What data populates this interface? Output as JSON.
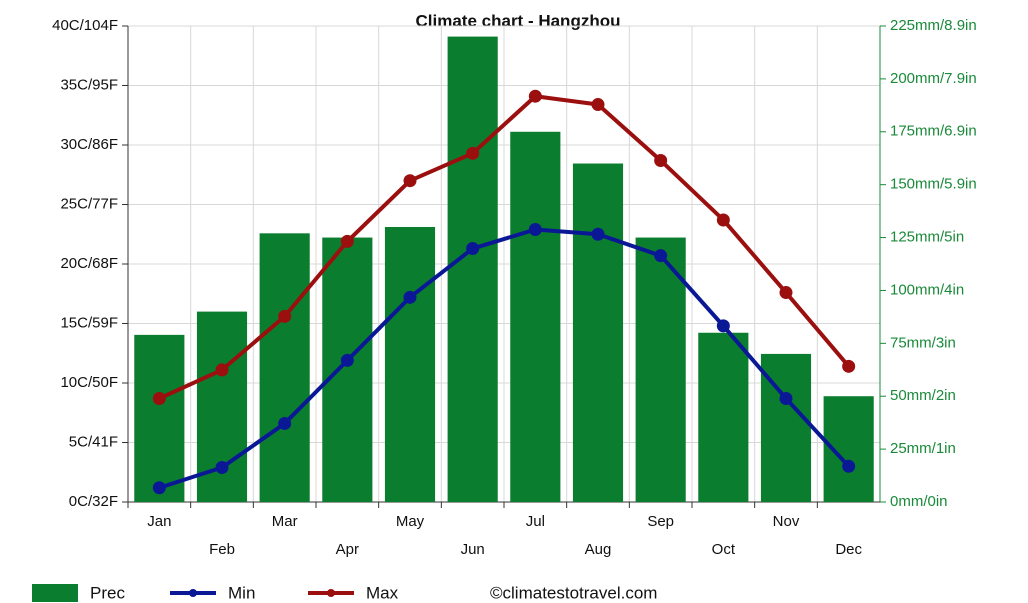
{
  "chart_data": {
    "type": "bar",
    "title": "Climate chart - Hangzhou",
    "source": "©climatestotravel.com",
    "categories": [
      "Jan",
      "Feb",
      "Mar",
      "Apr",
      "May",
      "Jun",
      "Jul",
      "Aug",
      "Sep",
      "Oct",
      "Nov",
      "Dec"
    ],
    "series": [
      {
        "name": "Prec",
        "type": "bar",
        "axis": "y2",
        "color": "#0b7d2e",
        "values": [
          79,
          90,
          127,
          125,
          130,
          220,
          175,
          160,
          125,
          80,
          70,
          50
        ]
      },
      {
        "name": "Min",
        "type": "line",
        "color": "#0a1896",
        "values": [
          1.2,
          2.9,
          6.6,
          11.9,
          17.2,
          21.3,
          22.9,
          22.5,
          20.7,
          14.8,
          8.7,
          3.0
        ]
      },
      {
        "name": "Max",
        "type": "line",
        "color": "#9b0f0f",
        "values": [
          8.7,
          11.1,
          15.6,
          21.9,
          27.0,
          29.3,
          34.1,
          33.4,
          28.7,
          23.7,
          17.6,
          11.4
        ]
      }
    ],
    "ylim": [
      0,
      40
    ],
    "yticks": [
      {
        "value": 0,
        "label": "0C/32F"
      },
      {
        "value": 5,
        "label": "5C/41F"
      },
      {
        "value": 10,
        "label": "10C/50F"
      },
      {
        "value": 15,
        "label": "15C/59F"
      },
      {
        "value": 20,
        "label": "20C/68F"
      },
      {
        "value": 25,
        "label": "25C/77F"
      },
      {
        "value": 30,
        "label": "30C/86F"
      },
      {
        "value": 35,
        "label": "35C/95F"
      },
      {
        "value": 40,
        "label": "40C/104F"
      }
    ],
    "y2lim": [
      0,
      225
    ],
    "y2ticks": [
      {
        "value": 0,
        "label": "0mm/0in"
      },
      {
        "value": 25,
        "label": "25mm/1in"
      },
      {
        "value": 50,
        "label": "50mm/2in"
      },
      {
        "value": 75,
        "label": "75mm/3in"
      },
      {
        "value": 100,
        "label": "100mm/4in"
      },
      {
        "value": 125,
        "label": "125mm/5in"
      },
      {
        "value": 150,
        "label": "150mm/5.9in"
      },
      {
        "value": 175,
        "label": "175mm/6.9in"
      },
      {
        "value": 200,
        "label": "200mm/7.9in"
      },
      {
        "value": 225,
        "label": "225mm/8.9in"
      }
    ],
    "grid": true
  }
}
